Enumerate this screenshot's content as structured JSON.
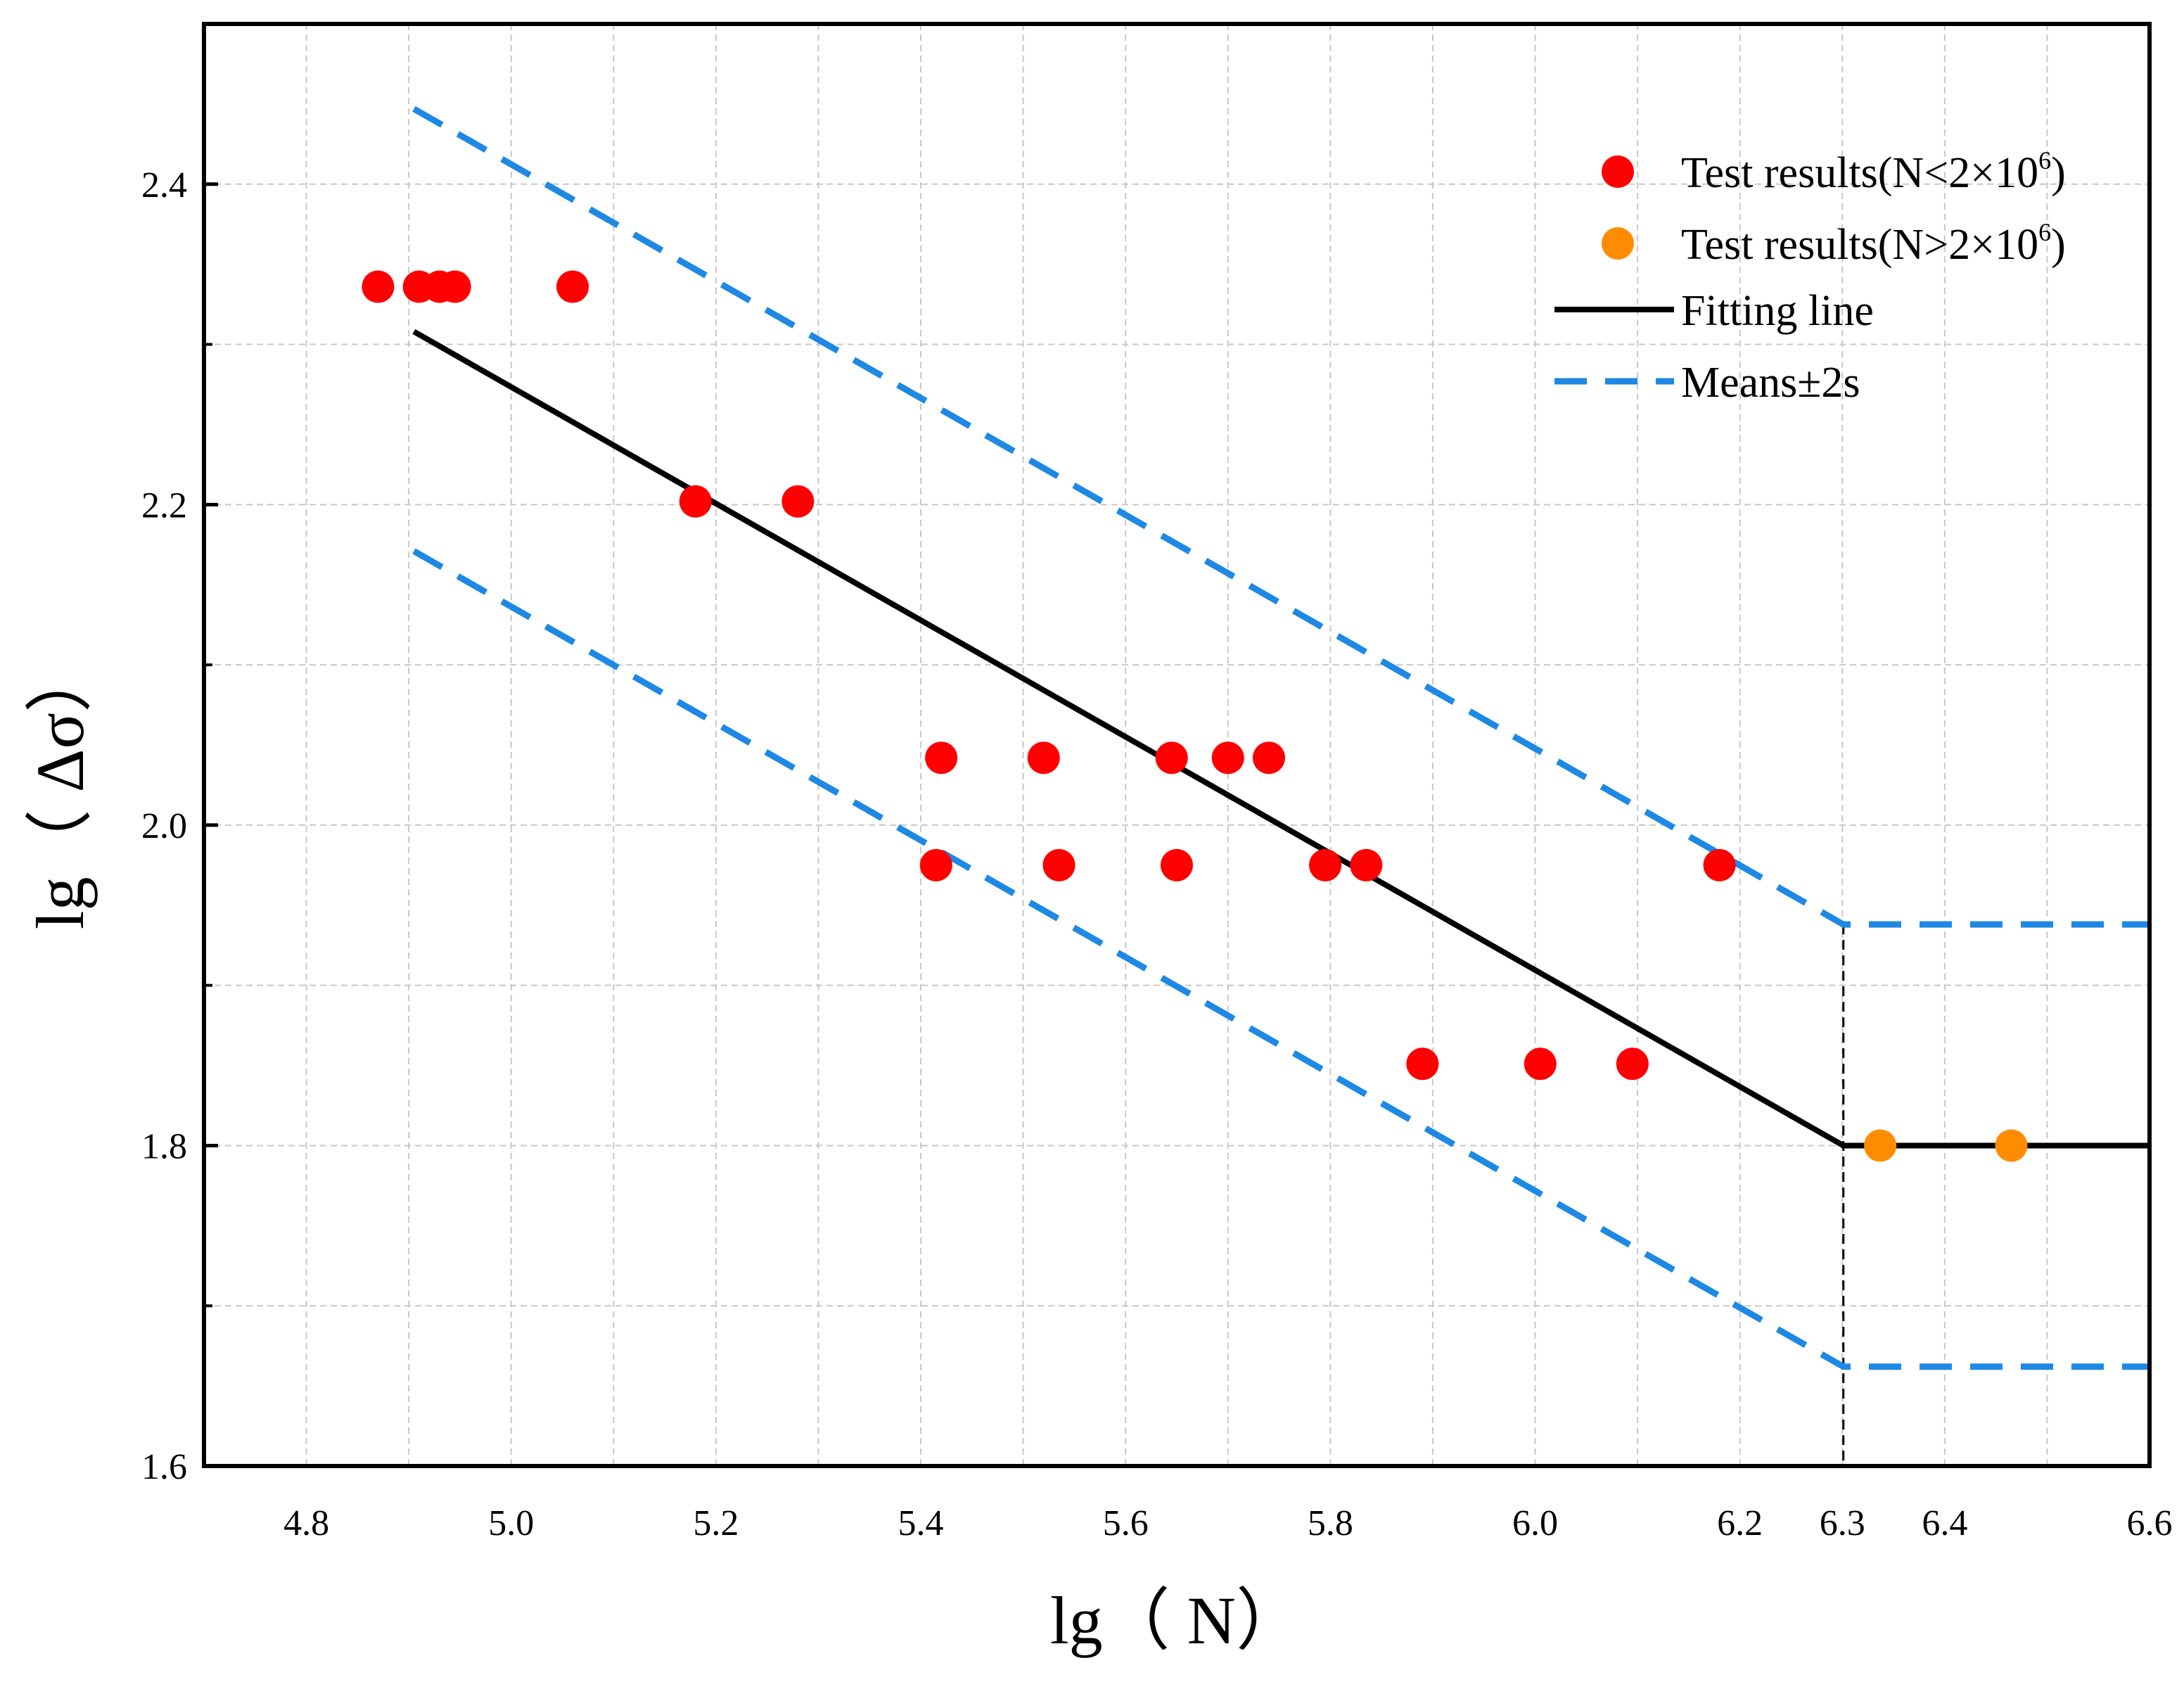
{
  "chart_data": {
    "type": "scatter",
    "title": "",
    "xlabel": "lg（ N）",
    "ylabel": "lg（ Δσ）",
    "xlim": [
      4.7,
      6.6
    ],
    "ylim": [
      1.6,
      2.5
    ],
    "grid": true,
    "legend_position": "top-right",
    "x_ticks": [
      {
        "value": 4.8,
        "label": "4.8"
      },
      {
        "value": 5.0,
        "label": "5.0"
      },
      {
        "value": 5.2,
        "label": "5.2"
      },
      {
        "value": 5.4,
        "label": "5.4"
      },
      {
        "value": 5.6,
        "label": "5.6"
      },
      {
        "value": 5.8,
        "label": "5.8"
      },
      {
        "value": 6.0,
        "label": "6.0"
      },
      {
        "value": 6.2,
        "label": "6.2"
      },
      {
        "value": 6.3,
        "label": "6.3"
      },
      {
        "value": 6.4,
        "label": "6.4"
      },
      {
        "value": 6.6,
        "label": "6.6"
      }
    ],
    "x_minor_grid": [
      4.9,
      5.1,
      5.3,
      5.5,
      5.7,
      5.9,
      6.1,
      6.5
    ],
    "y_ticks": [
      {
        "value": 1.6,
        "label": "1.6"
      },
      {
        "value": 1.8,
        "label": "1.8"
      },
      {
        "value": 2.0,
        "label": "2.0"
      },
      {
        "value": 2.2,
        "label": "2.2"
      },
      {
        "value": 2.4,
        "label": "2.4"
      }
    ],
    "y_minor_ticks": [
      1.7,
      1.9,
      2.1,
      2.3
    ],
    "series": [
      {
        "name": "Test results(N<2×10",
        "name_sup": "6",
        "name_end": ")",
        "kind": "scatter",
        "color": "#ff0000",
        "points": [
          [
            4.87,
            2.336
          ],
          [
            4.91,
            2.336
          ],
          [
            4.93,
            2.336
          ],
          [
            4.945,
            2.336
          ],
          [
            5.06,
            2.336
          ],
          [
            5.18,
            2.202
          ],
          [
            5.28,
            2.202
          ],
          [
            5.42,
            2.042
          ],
          [
            5.52,
            2.042
          ],
          [
            5.645,
            2.042
          ],
          [
            5.7,
            2.042
          ],
          [
            5.74,
            2.042
          ],
          [
            5.415,
            1.975
          ],
          [
            5.535,
            1.975
          ],
          [
            5.65,
            1.975
          ],
          [
            5.795,
            1.975
          ],
          [
            5.835,
            1.975
          ],
          [
            6.18,
            1.975
          ],
          [
            5.89,
            1.851
          ],
          [
            6.005,
            1.851
          ],
          [
            6.095,
            1.851
          ]
        ]
      },
      {
        "name": "Test results(N>2×10",
        "name_sup": "6",
        "name_end": ")",
        "kind": "scatter",
        "color": "#ff8c00",
        "points": [
          [
            6.337,
            1.8
          ],
          [
            6.465,
            1.8
          ]
        ]
      },
      {
        "name": "Fitting line",
        "kind": "line",
        "color": "#000000",
        "dash": "solid",
        "points": [
          [
            4.905,
            2.308
          ],
          [
            6.301,
            1.8
          ],
          [
            6.6,
            1.8
          ]
        ]
      },
      {
        "name": "Means±2s",
        "kind": "line",
        "color": "#1e88e5",
        "dash": "dashed",
        "segments": [
          [
            [
              4.905,
              2.447
            ],
            [
              6.301,
              1.938
            ],
            [
              6.6,
              1.938
            ]
          ],
          [
            [
              4.905,
              2.171
            ],
            [
              6.301,
              1.662
            ],
            [
              6.6,
              1.662
            ]
          ]
        ]
      }
    ],
    "reference_lines": [
      {
        "kind": "vertical",
        "x": 6.301,
        "from_y": 1.6,
        "to_y": 1.938,
        "color": "#000000",
        "dash": "short-dash"
      }
    ]
  }
}
